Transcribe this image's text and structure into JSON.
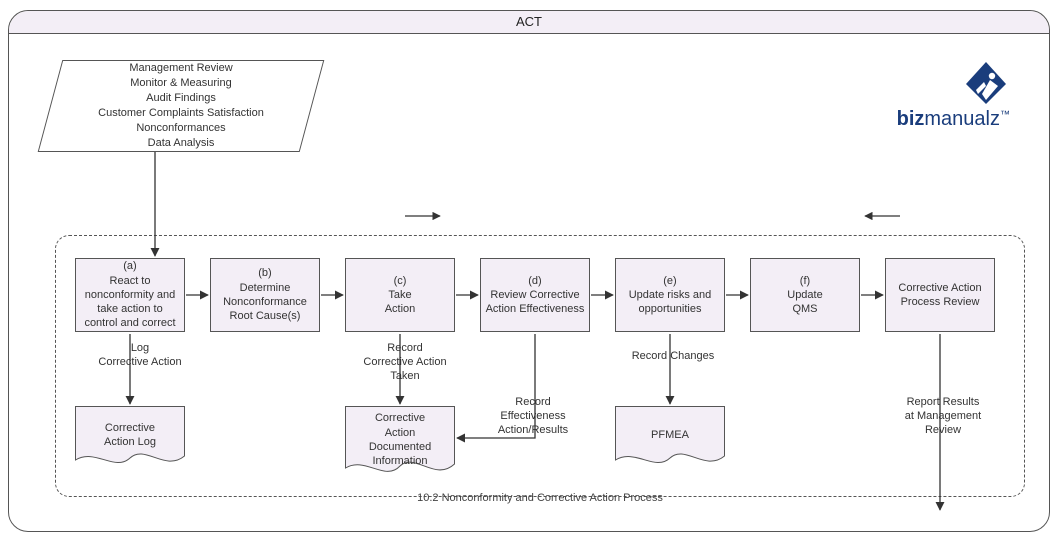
{
  "title": "ACT",
  "logo": {
    "word_bold": "biz",
    "word_rest": "manualz",
    "tm": "™",
    "color": "#1a3d7c"
  },
  "colors": {
    "box_fill": "#f3eef6",
    "box_border": "#555555",
    "doc_fill": "#f3eef6",
    "text": "#333333",
    "bg": "#ffffff"
  },
  "parallelogram": {
    "lines": [
      "Management Review",
      "Monitor & Measuring",
      "Audit Findings",
      "Customer Complaints Satisfaction",
      "Nonconformances",
      "Data Analysis"
    ]
  },
  "process": {
    "container_title": "10.2 Nonconformity and Corrective Action Process",
    "steps": [
      {
        "id": "a",
        "label_letter": "(a)",
        "label": "React to nonconformity and take action to control and correct"
      },
      {
        "id": "b",
        "label_letter": "(b)",
        "label": "Determine Nonconformance Root Cause(s)"
      },
      {
        "id": "c",
        "label_letter": "(c)",
        "label": "Take\nAction"
      },
      {
        "id": "d",
        "label_letter": "(d)",
        "label": "Review Corrective Action Effectiveness"
      },
      {
        "id": "e",
        "label_letter": "(e)",
        "label": "Update risks and opportunities"
      },
      {
        "id": "f",
        "label_letter": "(f)",
        "label": "Update\nQMS"
      },
      {
        "id": "g",
        "label_letter": "",
        "label": "Corrective Action Process Review"
      }
    ],
    "edge_labels": {
      "a_down": "Log\nCorrective Action",
      "c_down": "Record\nCorrective Action\nTaken",
      "d_down": "Record\nEffectiveness\nAction/Results",
      "e_down": "Record Changes",
      "g_down": "Report Results\nat Management\nReview"
    },
    "documents": {
      "log": "Corrective\nAction Log",
      "info": "Corrective\nAction\nDocumented\nInformation",
      "pfmea": "PFMEA"
    }
  }
}
